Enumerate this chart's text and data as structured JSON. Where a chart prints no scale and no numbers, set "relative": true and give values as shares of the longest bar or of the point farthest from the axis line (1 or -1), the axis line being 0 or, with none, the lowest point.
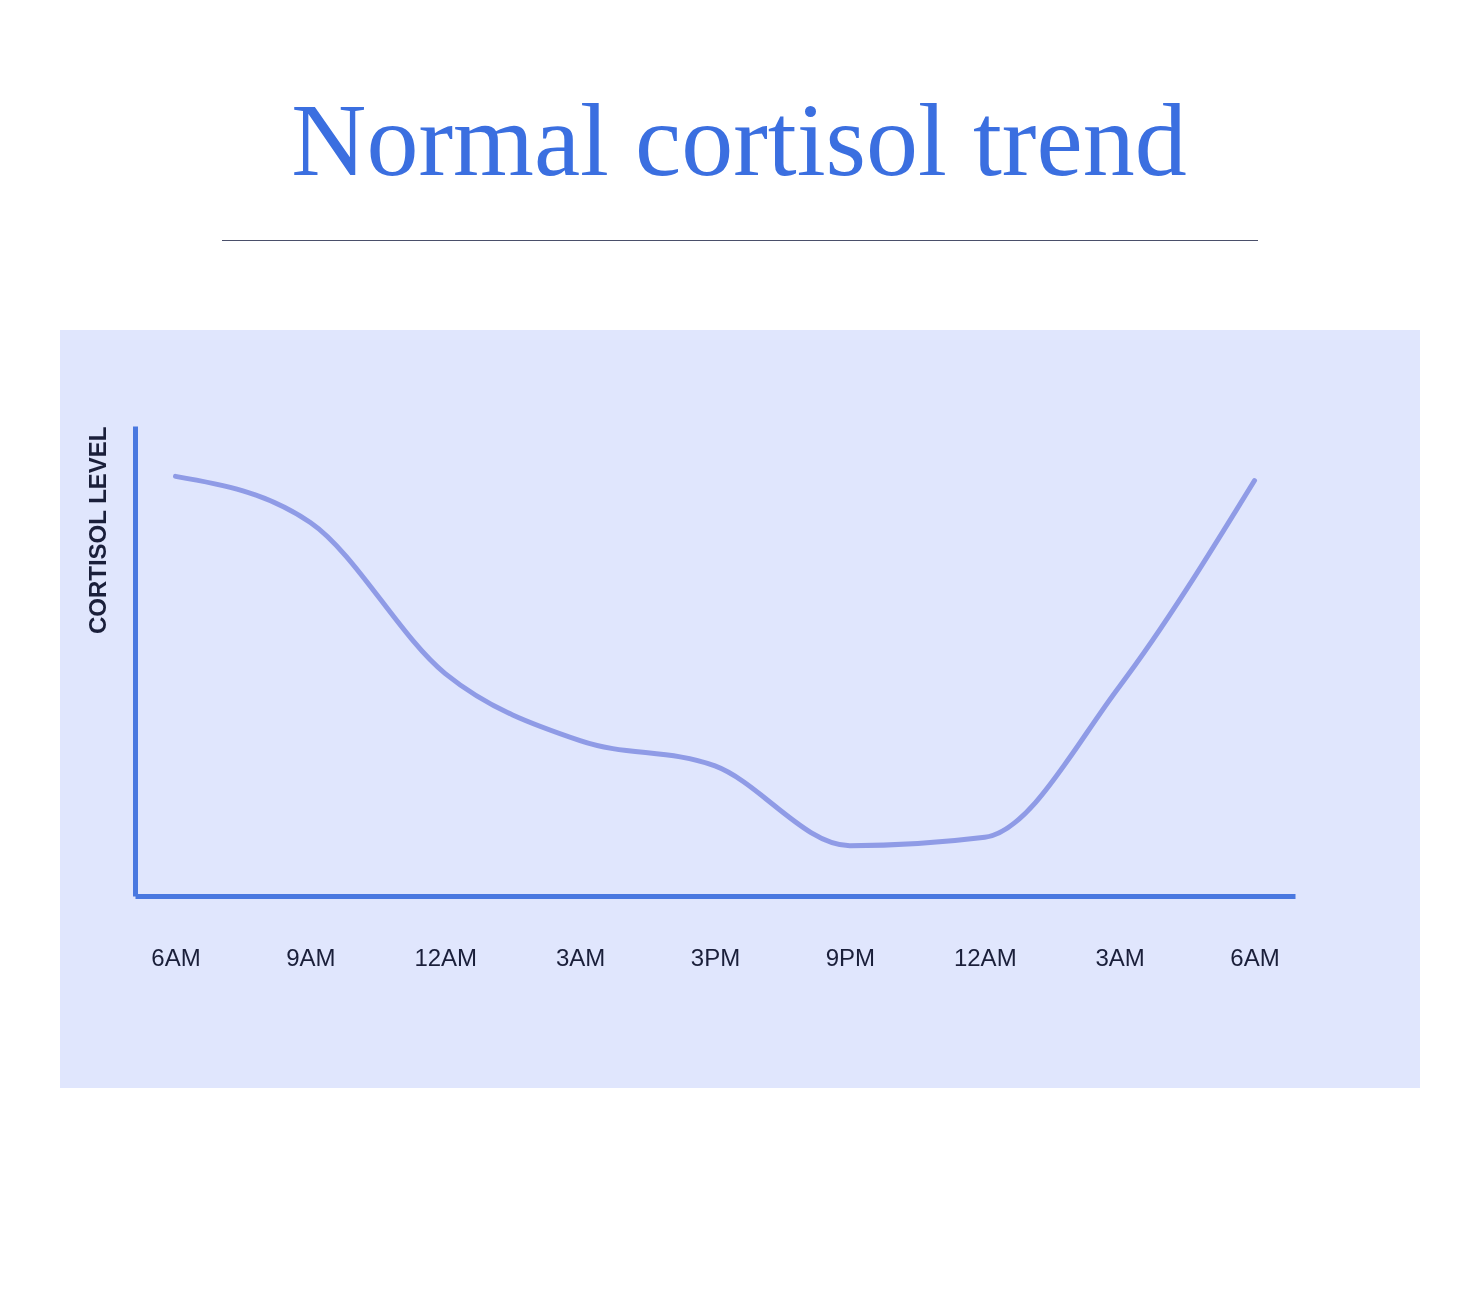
{
  "chart_data": {
    "type": "line",
    "title": "Normal cortisol trend",
    "ylabel": "CORTISOL LEVEL",
    "categories": [
      "6AM",
      "9AM",
      "12AM",
      "3AM",
      "3PM",
      "9PM",
      "12AM",
      "3AM",
      "6AM"
    ],
    "values": [
      1,
      0.89,
      0.53,
      0.37,
      0.31,
      0.12,
      0.14,
      0.5,
      0.99
    ],
    "color": "#8f9be6",
    "relative": true,
    "tick_labels": "x"
  }
}
